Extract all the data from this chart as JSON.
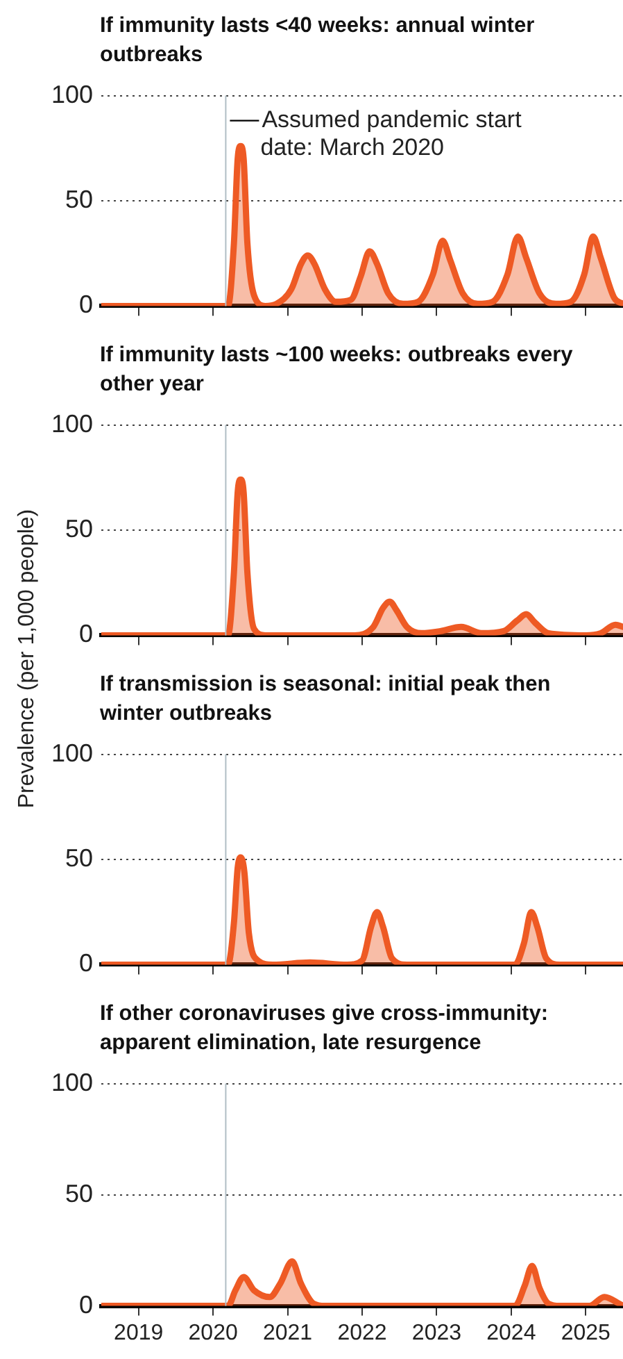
{
  "chart_data": [
    {
      "type": "area",
      "title": "If immunity lasts <40 weeks: annual winter outbreaks",
      "xlim": [
        2018.5,
        2025.5
      ],
      "xticks": [
        2019,
        2020,
        2021,
        2022,
        2023,
        2024,
        2025
      ],
      "ylim": [
        0,
        100
      ],
      "yticks": [
        0,
        50,
        100
      ],
      "grid": "y",
      "tick_labels": "y",
      "color": "#ee5a24",
      "x": [
        2018.5,
        2020.2,
        2020.28,
        2020.33,
        2020.37,
        2020.41,
        2020.46,
        2020.55,
        2020.7,
        2020.85,
        2021.05,
        2021.18,
        2021.27,
        2021.36,
        2021.5,
        2021.65,
        2021.85,
        2021.98,
        2022.1,
        2022.2,
        2022.35,
        2022.55,
        2022.75,
        2022.95,
        2023.08,
        2023.18,
        2023.35,
        2023.55,
        2023.75,
        2023.95,
        2024.09,
        2024.2,
        2024.38,
        2024.6,
        2024.8,
        2024.98,
        2025.1,
        2025.2,
        2025.38,
        2025.5
      ],
      "values": [
        0,
        0,
        30,
        70,
        76,
        70,
        30,
        5,
        0,
        1,
        8,
        20,
        24,
        20,
        8,
        2,
        3,
        14,
        26,
        20,
        6,
        1,
        2,
        15,
        31,
        22,
        6,
        1,
        2,
        15,
        33,
        23,
        6,
        1,
        2,
        15,
        33,
        23,
        4,
        1
      ],
      "ref_lines": [
        {
          "axis": "x",
          "value": 2020.17,
          "label": "Assumed pandemic start date: March 2020",
          "color": "#b0bec5"
        }
      ]
    },
    {
      "type": "area",
      "title": "If immunity lasts ~100 weeks: outbreaks every other year",
      "xlim": [
        2018.5,
        2025.5
      ],
      "xticks": [
        2019,
        2020,
        2021,
        2022,
        2023,
        2024,
        2025
      ],
      "ylim": [
        0,
        100
      ],
      "yticks": [
        0,
        50,
        100
      ],
      "grid": "y",
      "tick_labels": "y",
      "color": "#ee5a24",
      "ylabel": "Prevalence (per 1,000 people)",
      "x": [
        2018.5,
        2020.2,
        2020.28,
        2020.33,
        2020.37,
        2020.41,
        2020.46,
        2020.55,
        2020.7,
        2021.9,
        2022.15,
        2022.28,
        2022.37,
        2022.46,
        2022.6,
        2022.8,
        2023.05,
        2023.33,
        2023.6,
        2023.9,
        2024.08,
        2024.2,
        2024.32,
        2024.5,
        2025.0,
        2025.2,
        2025.4,
        2025.5
      ],
      "values": [
        0,
        0,
        30,
        68,
        74,
        68,
        30,
        3,
        0,
        0,
        4,
        13,
        16,
        12,
        4,
        1,
        2,
        4,
        1,
        2,
        7,
        10,
        6,
        1,
        0,
        1,
        5,
        4
      ],
      "ref_lines": [
        {
          "axis": "x",
          "value": 2020.17,
          "color": "#b0bec5"
        }
      ]
    },
    {
      "type": "area",
      "title": "If transmission is seasonal: initial peak then winter outbreaks",
      "xlim": [
        2018.5,
        2025.5
      ],
      "xticks": [
        2019,
        2020,
        2021,
        2022,
        2023,
        2024,
        2025
      ],
      "ylim": [
        0,
        100
      ],
      "yticks": [
        0,
        50,
        100
      ],
      "grid": "y",
      "tick_labels": "y",
      "color": "#ee5a24",
      "x": [
        2018.5,
        2020.2,
        2020.28,
        2020.33,
        2020.37,
        2020.42,
        2020.48,
        2020.6,
        2020.8,
        2021.3,
        2021.8,
        2022.0,
        2022.12,
        2022.2,
        2022.28,
        2022.4,
        2022.6,
        2024.05,
        2024.17,
        2024.27,
        2024.35,
        2024.47,
        2024.65,
        2025.5
      ],
      "values": [
        0,
        0,
        20,
        46,
        51,
        44,
        15,
        2,
        0,
        1,
        0,
        2,
        18,
        25,
        18,
        3,
        0,
        0,
        10,
        25,
        18,
        3,
        0,
        0
      ],
      "ref_lines": [
        {
          "axis": "x",
          "value": 2020.17,
          "color": "#b0bec5"
        }
      ]
    },
    {
      "type": "area",
      "title": "If other coronaviruses give cross-immunity: apparent elimination, late resurgence",
      "xlim": [
        2018.5,
        2025.5
      ],
      "xticks": [
        2019,
        2020,
        2021,
        2022,
        2023,
        2024,
        2025
      ],
      "ylim": [
        0,
        100
      ],
      "yticks": [
        0,
        50,
        100
      ],
      "grid": "y",
      "color": "#ee5a24",
      "x": [
        2018.5,
        2020.2,
        2020.3,
        2020.41,
        2020.55,
        2020.76,
        2020.9,
        2021.06,
        2021.18,
        2021.35,
        2021.5,
        2024.05,
        2024.18,
        2024.28,
        2024.38,
        2024.5,
        2024.65,
        2025.05,
        2025.25,
        2025.45,
        2025.5
      ],
      "values": [
        0,
        0,
        7,
        13,
        7,
        4,
        10,
        20,
        10,
        1,
        0,
        0,
        9,
        18,
        8,
        1,
        0,
        0,
        4,
        1,
        0
      ],
      "ref_lines": [
        {
          "axis": "x",
          "value": 2020.17,
          "color": "#b0bec5"
        }
      ]
    }
  ]
}
